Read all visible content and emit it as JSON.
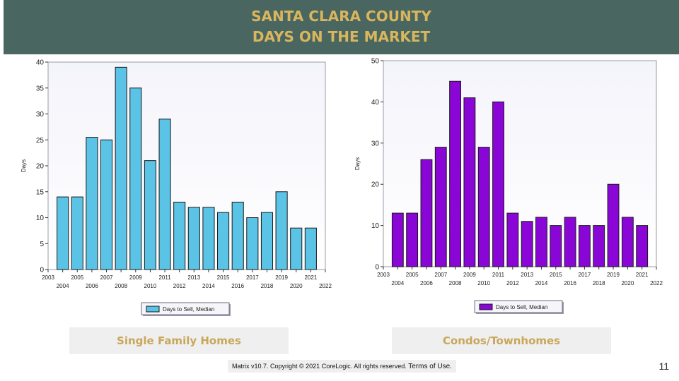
{
  "header": {
    "line1": "SANTA CLARA COUNTY",
    "line2": "DAYS ON THE MARKET"
  },
  "colors": {
    "header_bg": "#4a6660",
    "title_gold": "#d9b65d",
    "caption_gold": "#c9a75a",
    "sfh_bar": "#5bc3e6",
    "condo_bar": "#8a06d6"
  },
  "chart_data": [
    {
      "type": "bar",
      "ylabel": "Days",
      "ylim": [
        0,
        40
      ],
      "yticks": [
        0,
        5,
        10,
        15,
        20,
        25,
        30,
        35,
        40
      ],
      "xlim": [
        2003,
        2022
      ],
      "xticks_top": [
        "2003",
        "2005",
        "2007",
        "2009",
        "2011",
        "2013",
        "2015",
        "2017",
        "2019",
        "2021"
      ],
      "xticks_bottom": [
        "2004",
        "2006",
        "2008",
        "2010",
        "2012",
        "2014",
        "2016",
        "2018",
        "2020",
        "2022"
      ],
      "legend": "Days to Sell, Median",
      "legend_position": "bottom",
      "grid": false,
      "color": "#5bc3e6",
      "x": [
        2004,
        2005,
        2006,
        2007,
        2008,
        2009,
        2010,
        2011,
        2012,
        2013,
        2014,
        2015,
        2016,
        2017,
        2018,
        2019,
        2020,
        2021
      ],
      "values": [
        14,
        14,
        25.5,
        25,
        39,
        35,
        21,
        29,
        13,
        12,
        12,
        11,
        13,
        10,
        11,
        15,
        8,
        8
      ]
    },
    {
      "type": "bar",
      "ylabel": "Days",
      "ylim": [
        0,
        50
      ],
      "yticks": [
        0,
        10,
        20,
        30,
        40,
        50
      ],
      "xlim": [
        2003,
        2022
      ],
      "xticks_top": [
        "2003",
        "2005",
        "2007",
        "2009",
        "2011",
        "2013",
        "2015",
        "2017",
        "2019",
        "2021"
      ],
      "xticks_bottom": [
        "2004",
        "2006",
        "2008",
        "2010",
        "2012",
        "2014",
        "2016",
        "2018",
        "2020",
        "2022"
      ],
      "legend": "Days to Sell, Median",
      "legend_position": "bottom",
      "grid": false,
      "color": "#8a06d6",
      "x": [
        2004,
        2005,
        2006,
        2007,
        2008,
        2009,
        2010,
        2011,
        2012,
        2013,
        2014,
        2015,
        2016,
        2017,
        2018,
        2019,
        2020,
        2021
      ],
      "values": [
        13,
        13,
        26,
        29,
        45,
        41,
        29,
        40,
        13,
        11,
        12,
        10,
        12,
        10,
        10,
        20,
        12,
        10
      ]
    }
  ],
  "captions": {
    "left": "Single Family Homes",
    "right": "Condos/Townhomes"
  },
  "footer": {
    "text": "Matrix v10.7. Copyright © 2021 CoreLogic. All rights reserved.",
    "terms": "Terms of Use."
  },
  "page_number": "11"
}
